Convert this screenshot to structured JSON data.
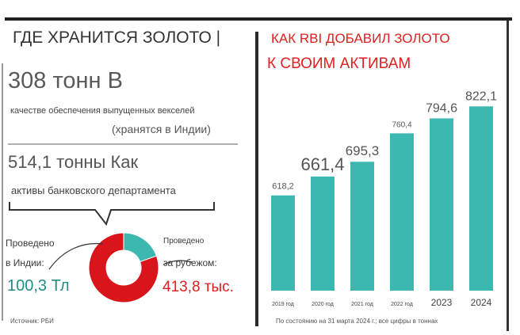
{
  "left": {
    "title": "ГДЕ ХРАНИТСЯ ЗОЛОТО |",
    "stat1_value": "308 тонн В",
    "stat1_desc": "качестве обеспечения выпущенных векселей",
    "stat1_note": "(хранятся в Индии)",
    "stat2_value": "514,1 тонны Как",
    "stat2_desc": "активы банковского департамента",
    "india_label_1": "Проведено",
    "india_label_2": "в Индии:",
    "india_value": "100,3 Тл",
    "abroad_label_1": "Проведено",
    "abroad_label_2": "за рубежом:",
    "abroad_value": "413,8 тыс.",
    "source": "Источник: РБИ"
  },
  "right": {
    "title_line1": "КАК RBI ДОБАВИЛ ЗОЛОТО",
    "title_line2": "К СВОИМ АКТИВАМ",
    "footnote": "По состоянию на 31 марта 2024 г.; все цифры в тоннах"
  },
  "colors": {
    "teal": "#3db8b0",
    "red": "#d9141b",
    "text": "#3a3a3a"
  },
  "chart_data": [
    {
      "type": "bar",
      "categories": [
        "2019 год",
        "2020 год",
        "2021 год",
        "2022 год",
        "2023",
        "2024"
      ],
      "values": [
        618.2,
        661.4,
        695.3,
        760.4,
        794.6,
        822.1
      ],
      "value_labels": [
        "618,2",
        "661,4",
        "695,3",
        "760,4",
        "794,6",
        "822,1"
      ],
      "ylim": [
        400,
        830
      ]
    },
    {
      "type": "pie",
      "labels": [
        "в Индии",
        "за рубежом"
      ],
      "values": [
        100.3,
        413.8
      ]
    }
  ]
}
